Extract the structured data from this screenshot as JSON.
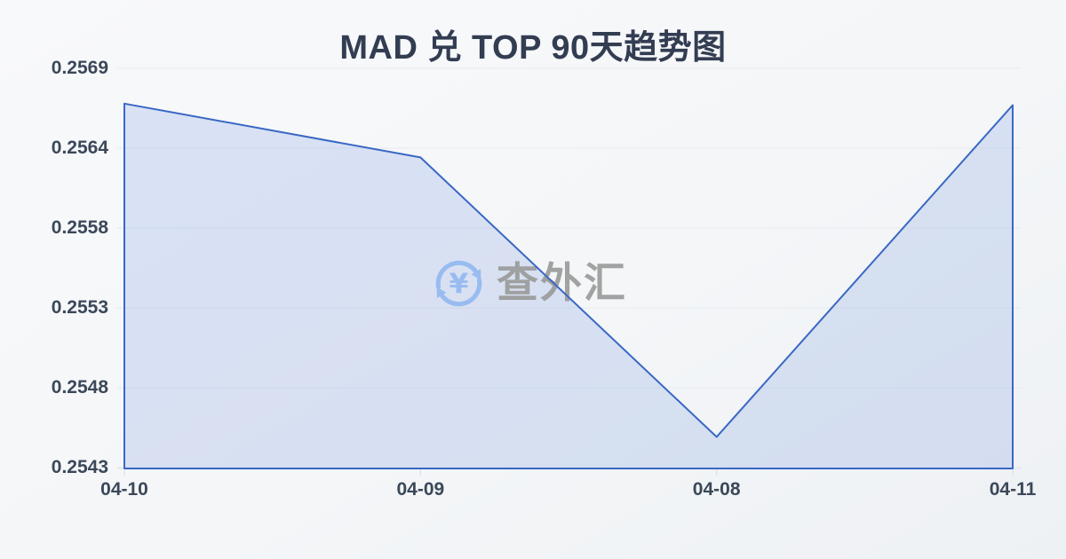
{
  "chart_data": {
    "type": "area",
    "title": "MAD 兑 TOP 90天趋势图",
    "x": [
      "04-10",
      "04-09",
      "04-08",
      "04-11"
    ],
    "values": [
      0.25667,
      0.25632,
      0.2545,
      0.25666
    ],
    "y_ticks": [
      "0.2569",
      "0.2564",
      "0.2558",
      "0.2553",
      "0.2548",
      "0.2543"
    ],
    "ylim": [
      0.2543,
      0.2569
    ],
    "xlabel": "",
    "ylabel": "",
    "grid": true,
    "legend": false,
    "line_color": "#3a68c4",
    "fill_color": "rgba(100, 140, 220, 0.20)",
    "grid_color": "#e7eaee",
    "axis_color": "#dfe3e8",
    "tick_color": "#d9dde2",
    "label_color": "#3b4859"
  },
  "watermark": {
    "text": "查外汇",
    "currency_symbol": "¥",
    "icon": "currency-exchange-icon",
    "icon_color": "#93b9f0",
    "text_color": "#9b9b9b"
  }
}
